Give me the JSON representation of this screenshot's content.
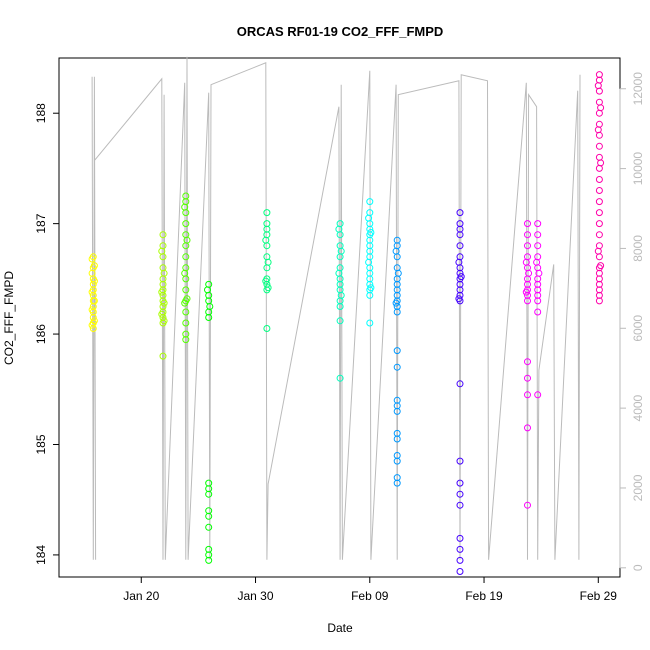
{
  "chart_data": {
    "type": "scatter",
    "title": "ORCAS RF01-19 CO2_FFF_FMPD",
    "xlabel": "Date",
    "ylabel": "CO2_FFF_FMPD",
    "x_ticks": [
      "Jan 20",
      "Jan 30",
      "Feb 09",
      "Feb 19",
      "Feb 29"
    ],
    "x_tick_day": [
      20,
      30,
      40,
      50,
      60
    ],
    "x_range_day": [
      12.8,
      61.9
    ],
    "ylim": [
      183.8,
      188.5
    ],
    "y_ticks": [
      184,
      185,
      186,
      187,
      188
    ],
    "y2_ticks": [
      0,
      2000,
      4000,
      6000,
      8000,
      10000,
      12000
    ],
    "y2_range": [
      -230,
      12770
    ],
    "y2_color": "#bbbbbb",
    "altitude_line": {
      "color": "#bbbbbb",
      "points": [
        [
          15.7,
          12300
        ],
        [
          15.8,
          200
        ],
        [
          15.9,
          12300
        ],
        [
          16.0,
          200
        ],
        [
          15.9,
          10200
        ],
        [
          21.8,
          12250
        ],
        [
          21.9,
          200
        ],
        [
          22.0,
          11850
        ],
        [
          22.1,
          200
        ],
        [
          23.8,
          12150
        ],
        [
          23.9,
          200
        ],
        [
          24.0,
          12800
        ],
        [
          24.1,
          200
        ],
        [
          25.9,
          11900
        ],
        [
          26.0,
          200
        ],
        [
          26.1,
          12100
        ],
        [
          30.9,
          12650
        ],
        [
          31.0,
          200
        ],
        [
          31.1,
          2100
        ],
        [
          37.3,
          11550
        ],
        [
          37.4,
          200
        ],
        [
          37.5,
          12100
        ],
        [
          37.6,
          200
        ],
        [
          40.0,
          12450
        ],
        [
          40.1,
          200
        ],
        [
          42.3,
          12100
        ],
        [
          42.4,
          200
        ],
        [
          42.5,
          11850
        ],
        [
          47.8,
          12200
        ],
        [
          47.9,
          200
        ],
        [
          48.0,
          12350
        ],
        [
          50.3,
          12200
        ],
        [
          50.4,
          200
        ],
        [
          53.7,
          12150
        ],
        [
          53.8,
          200
        ],
        [
          53.9,
          11850
        ],
        [
          54.6,
          11550
        ],
        [
          54.7,
          200
        ],
        [
          54.8,
          4950
        ],
        [
          56.1,
          7600
        ],
        [
          56.2,
          200
        ],
        [
          58.2,
          11950
        ],
        [
          58.3,
          200
        ],
        [
          58.4,
          12350
        ]
      ]
    },
    "series": [
      {
        "color": "#ffff00",
        "points": [
          [
            15.8,
            186.7
          ],
          [
            15.8,
            186.6
          ],
          [
            15.8,
            186.5
          ],
          [
            15.8,
            186.45
          ],
          [
            15.8,
            186.4
          ],
          [
            15.8,
            186.35
          ],
          [
            15.8,
            186.3
          ],
          [
            15.8,
            186.25
          ],
          [
            15.8,
            186.2
          ],
          [
            15.8,
            186.15
          ],
          [
            15.8,
            186.1
          ],
          [
            15.8,
            186.05
          ],
          [
            15.7,
            186.68
          ],
          [
            15.9,
            186.62
          ],
          [
            15.7,
            186.55
          ],
          [
            15.9,
            186.48
          ],
          [
            15.7,
            186.38
          ],
          [
            15.9,
            186.3
          ],
          [
            15.7,
            186.22
          ],
          [
            15.9,
            186.12
          ],
          [
            15.7,
            186.08
          ]
        ]
      },
      {
        "color": "#aaff00",
        "points": [
          [
            21.9,
            186.9
          ],
          [
            21.9,
            186.8
          ],
          [
            21.9,
            186.7
          ],
          [
            21.9,
            186.6
          ],
          [
            21.9,
            186.5
          ],
          [
            21.9,
            186.45
          ],
          [
            21.9,
            186.4
          ],
          [
            21.9,
            186.35
          ],
          [
            21.9,
            186.3
          ],
          [
            21.9,
            186.25
          ],
          [
            21.9,
            186.2
          ],
          [
            21.9,
            186.15
          ],
          [
            21.9,
            186.1
          ],
          [
            21.9,
            185.8
          ],
          [
            21.8,
            186.75
          ],
          [
            22.0,
            186.55
          ],
          [
            21.8,
            186.38
          ],
          [
            22.0,
            186.28
          ],
          [
            21.8,
            186.18
          ],
          [
            22.0,
            186.12
          ]
        ]
      },
      {
        "color": "#55ff00",
        "points": [
          [
            23.9,
            187.25
          ],
          [
            23.9,
            187.2
          ],
          [
            23.9,
            187.1
          ],
          [
            23.9,
            187.0
          ],
          [
            23.9,
            186.9
          ],
          [
            23.9,
            186.8
          ],
          [
            23.9,
            186.7
          ],
          [
            23.9,
            186.6
          ],
          [
            23.9,
            186.5
          ],
          [
            23.9,
            186.4
          ],
          [
            23.9,
            186.3
          ],
          [
            23.9,
            186.2
          ],
          [
            23.9,
            186.1
          ],
          [
            23.9,
            186.0
          ],
          [
            23.9,
            185.95
          ],
          [
            23.8,
            187.15
          ],
          [
            24.0,
            186.85
          ],
          [
            23.8,
            186.55
          ],
          [
            24.0,
            186.32
          ],
          [
            23.8,
            186.28
          ]
        ]
      },
      {
        "color": "#00ff00",
        "points": [
          [
            25.9,
            186.45
          ],
          [
            25.9,
            186.35
          ],
          [
            25.9,
            186.3
          ],
          [
            25.9,
            186.2
          ],
          [
            25.9,
            186.15
          ],
          [
            25.9,
            184.65
          ],
          [
            25.9,
            184.6
          ],
          [
            25.9,
            184.55
          ],
          [
            25.9,
            184.4
          ],
          [
            25.9,
            184.35
          ],
          [
            25.9,
            184.25
          ],
          [
            25.9,
            184.05
          ],
          [
            25.9,
            184.0
          ],
          [
            25.9,
            183.95
          ],
          [
            25.8,
            186.4
          ],
          [
            26.0,
            186.25
          ]
        ]
      },
      {
        "color": "#00ff80",
        "points": [
          [
            31.0,
            187.1
          ],
          [
            31.0,
            187.0
          ],
          [
            31.0,
            186.95
          ],
          [
            31.0,
            186.9
          ],
          [
            31.0,
            186.8
          ],
          [
            31.0,
            186.7
          ],
          [
            31.0,
            186.6
          ],
          [
            31.0,
            186.5
          ],
          [
            31.0,
            186.45
          ],
          [
            31.0,
            186.4
          ],
          [
            31.0,
            186.05
          ],
          [
            30.9,
            186.85
          ],
          [
            31.1,
            186.65
          ],
          [
            30.9,
            186.48
          ],
          [
            31.1,
            186.42
          ]
        ]
      },
      {
        "color": "#00ffbf",
        "points": [
          [
            37.4,
            187.0
          ],
          [
            37.4,
            186.9
          ],
          [
            37.4,
            186.8
          ],
          [
            37.4,
            186.7
          ],
          [
            37.4,
            186.6
          ],
          [
            37.4,
            186.5
          ],
          [
            37.4,
            186.45
          ],
          [
            37.4,
            186.4
          ],
          [
            37.4,
            186.3
          ],
          [
            37.4,
            186.25
          ],
          [
            37.4,
            186.12
          ],
          [
            37.4,
            185.6
          ],
          [
            37.3,
            186.95
          ],
          [
            37.5,
            186.75
          ],
          [
            37.3,
            186.55
          ],
          [
            37.5,
            186.35
          ]
        ]
      },
      {
        "color": "#00ffff",
        "points": [
          [
            40.0,
            187.2
          ],
          [
            40.0,
            187.1
          ],
          [
            40.0,
            187.0
          ],
          [
            40.0,
            186.95
          ],
          [
            40.0,
            186.9
          ],
          [
            40.0,
            186.85
          ],
          [
            40.0,
            186.8
          ],
          [
            40.0,
            186.75
          ],
          [
            40.0,
            186.7
          ],
          [
            40.0,
            186.6
          ],
          [
            40.0,
            186.55
          ],
          [
            40.0,
            186.5
          ],
          [
            40.0,
            186.45
          ],
          [
            40.0,
            186.4
          ],
          [
            40.0,
            186.35
          ],
          [
            40.0,
            186.1
          ],
          [
            39.9,
            187.05
          ],
          [
            40.1,
            186.92
          ],
          [
            39.9,
            186.65
          ],
          [
            40.1,
            186.42
          ]
        ]
      },
      {
        "color": "#0099ff",
        "points": [
          [
            42.4,
            186.85
          ],
          [
            42.4,
            186.8
          ],
          [
            42.4,
            186.7
          ],
          [
            42.4,
            186.6
          ],
          [
            42.4,
            186.5
          ],
          [
            42.4,
            186.45
          ],
          [
            42.4,
            186.4
          ],
          [
            42.4,
            186.35
          ],
          [
            42.4,
            186.3
          ],
          [
            42.4,
            186.25
          ],
          [
            42.4,
            186.2
          ],
          [
            42.4,
            185.85
          ],
          [
            42.4,
            185.7
          ],
          [
            42.4,
            185.4
          ],
          [
            42.4,
            185.35
          ],
          [
            42.4,
            185.3
          ],
          [
            42.4,
            185.1
          ],
          [
            42.4,
            185.05
          ],
          [
            42.4,
            184.9
          ],
          [
            42.4,
            184.85
          ],
          [
            42.4,
            184.7
          ],
          [
            42.4,
            184.65
          ],
          [
            42.3,
            186.75
          ],
          [
            42.5,
            186.55
          ],
          [
            42.3,
            186.28
          ]
        ]
      },
      {
        "color": "#4400ff",
        "points": [
          [
            47.9,
            187.1
          ],
          [
            47.9,
            187.0
          ],
          [
            47.9,
            186.95
          ],
          [
            47.9,
            186.9
          ],
          [
            47.9,
            186.8
          ],
          [
            47.9,
            186.7
          ],
          [
            47.9,
            186.6
          ],
          [
            47.9,
            186.55
          ],
          [
            47.9,
            186.5
          ],
          [
            47.9,
            186.45
          ],
          [
            47.9,
            186.4
          ],
          [
            47.9,
            186.35
          ],
          [
            47.9,
            186.3
          ],
          [
            47.9,
            185.55
          ],
          [
            47.9,
            184.85
          ],
          [
            47.9,
            184.65
          ],
          [
            47.9,
            184.55
          ],
          [
            47.9,
            184.45
          ],
          [
            47.9,
            184.15
          ],
          [
            47.9,
            184.05
          ],
          [
            47.9,
            183.95
          ],
          [
            47.9,
            183.85
          ],
          [
            47.8,
            186.65
          ],
          [
            48.0,
            186.52
          ],
          [
            47.8,
            186.32
          ]
        ]
      },
      {
        "color": "#ff00ff",
        "points": [
          [
            53.8,
            187.0
          ],
          [
            53.8,
            186.9
          ],
          [
            53.8,
            186.8
          ],
          [
            53.8,
            186.7
          ],
          [
            53.8,
            186.6
          ],
          [
            53.8,
            186.5
          ],
          [
            53.8,
            186.45
          ],
          [
            53.8,
            186.4
          ],
          [
            53.8,
            186.35
          ],
          [
            53.8,
            186.3
          ],
          [
            53.8,
            185.75
          ],
          [
            53.8,
            185.6
          ],
          [
            53.8,
            185.45
          ],
          [
            53.8,
            185.15
          ],
          [
            53.8,
            184.45
          ],
          [
            53.7,
            186.65
          ],
          [
            53.9,
            186.55
          ],
          [
            53.7,
            186.38
          ],
          [
            54.7,
            187.0
          ],
          [
            54.7,
            186.9
          ],
          [
            54.7,
            186.8
          ],
          [
            54.7,
            186.7
          ],
          [
            54.7,
            186.6
          ],
          [
            54.7,
            186.5
          ],
          [
            54.7,
            186.45
          ],
          [
            54.7,
            186.4
          ],
          [
            54.7,
            186.35
          ],
          [
            54.7,
            186.3
          ],
          [
            54.7,
            186.2
          ],
          [
            54.7,
            185.45
          ],
          [
            54.6,
            186.65
          ],
          [
            54.8,
            186.55
          ]
        ]
      },
      {
        "color": "#ff00aa",
        "points": [
          [
            60.1,
            188.35
          ],
          [
            60.1,
            188.3
          ],
          [
            60.1,
            188.2
          ],
          [
            60.1,
            188.1
          ],
          [
            60.1,
            188.0
          ],
          [
            60.1,
            187.9
          ],
          [
            60.1,
            187.8
          ],
          [
            60.1,
            187.7
          ],
          [
            60.1,
            187.6
          ],
          [
            60.1,
            187.5
          ],
          [
            60.1,
            187.4
          ],
          [
            60.1,
            187.3
          ],
          [
            60.1,
            187.2
          ],
          [
            60.1,
            187.1
          ],
          [
            60.1,
            187.0
          ],
          [
            60.1,
            186.9
          ],
          [
            60.1,
            186.8
          ],
          [
            60.1,
            186.7
          ],
          [
            60.1,
            186.6
          ],
          [
            60.1,
            186.55
          ],
          [
            60.1,
            186.5
          ],
          [
            60.1,
            186.45
          ],
          [
            60.1,
            186.4
          ],
          [
            60.1,
            186.35
          ],
          [
            60.1,
            186.3
          ],
          [
            60.0,
            188.25
          ],
          [
            60.2,
            188.05
          ],
          [
            60.0,
            187.85
          ],
          [
            60.2,
            187.55
          ],
          [
            60.0,
            186.75
          ],
          [
            60.2,
            186.62
          ]
        ]
      }
    ]
  }
}
